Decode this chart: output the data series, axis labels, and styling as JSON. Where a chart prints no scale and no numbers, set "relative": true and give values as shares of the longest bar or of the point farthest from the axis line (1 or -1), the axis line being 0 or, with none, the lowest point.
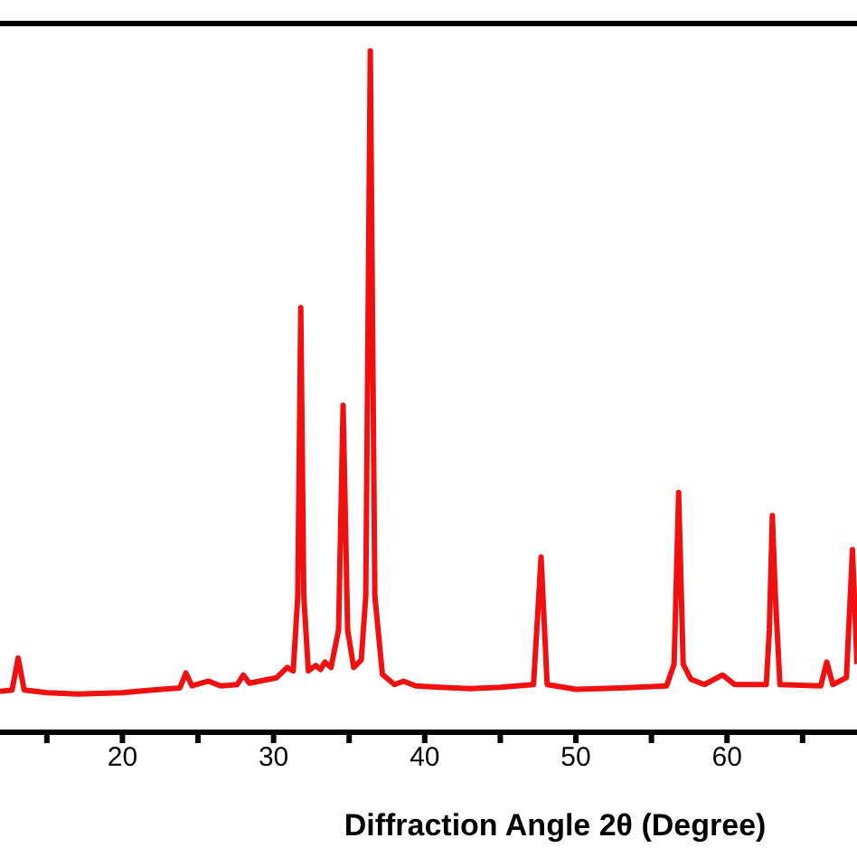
{
  "chart_data": {
    "type": "line",
    "relative": true,
    "xlabel": "Diffraction Angle 2θ (Degree)",
    "xlim": [
      11.9,
      68.6
    ],
    "xticks": [
      {
        "value": 15,
        "label": null
      },
      20,
      {
        "value": 25,
        "label": null
      },
      30,
      {
        "value": 35,
        "label": null
      },
      40,
      {
        "value": 45,
        "label": null
      },
      50,
      {
        "value": 55,
        "label": null
      },
      60,
      {
        "value": 65,
        "label": null
      }
    ],
    "marker": "none",
    "line_style": "solid",
    "x": [
      11.9,
      12.7,
      13.1,
      13.5,
      15,
      17,
      20,
      22,
      23.8,
      24.2,
      24.6,
      25.7,
      26.5,
      27.6,
      28.0,
      28.4,
      30.2,
      30.9,
      31.3,
      31.6,
      31.8,
      32.0,
      32.3,
      32.8,
      33.1,
      33.4,
      33.8,
      34.3,
      34.6,
      34.9,
      35.3,
      35.8,
      36.1,
      36.4,
      36.7,
      37.2,
      38.0,
      38.6,
      39.4,
      41,
      43,
      45,
      47.2,
      47.7,
      48.1,
      50,
      53,
      56,
      56.5,
      56.8,
      57.1,
      57.6,
      58.5,
      59.7,
      60.5,
      62.6,
      62.8,
      63.0,
      63.2,
      63.5,
      66.2,
      66.6,
      67.0,
      67.9,
      68.3,
      68.6
    ],
    "series": [
      {
        "color": "#f01010",
        "values": [
          0.06,
          0.062,
          0.109,
          0.062,
          0.058,
          0.056,
          0.058,
          0.062,
          0.065,
          0.087,
          0.068,
          0.075,
          0.068,
          0.07,
          0.084,
          0.072,
          0.08,
          0.095,
          0.09,
          0.2,
          0.623,
          0.2,
          0.09,
          0.098,
          0.092,
          0.103,
          0.095,
          0.15,
          0.48,
          0.15,
          0.095,
          0.106,
          0.2,
          1.0,
          0.2,
          0.085,
          0.07,
          0.075,
          0.068,
          0.066,
          0.064,
          0.066,
          0.07,
          0.257,
          0.07,
          0.063,
          0.065,
          0.068,
          0.1,
          0.352,
          0.1,
          0.078,
          0.07,
          0.084,
          0.07,
          0.07,
          0.15,
          0.318,
          0.2,
          0.07,
          0.068,
          0.103,
          0.07,
          0.08,
          0.268,
          0.1
        ]
      }
    ]
  }
}
